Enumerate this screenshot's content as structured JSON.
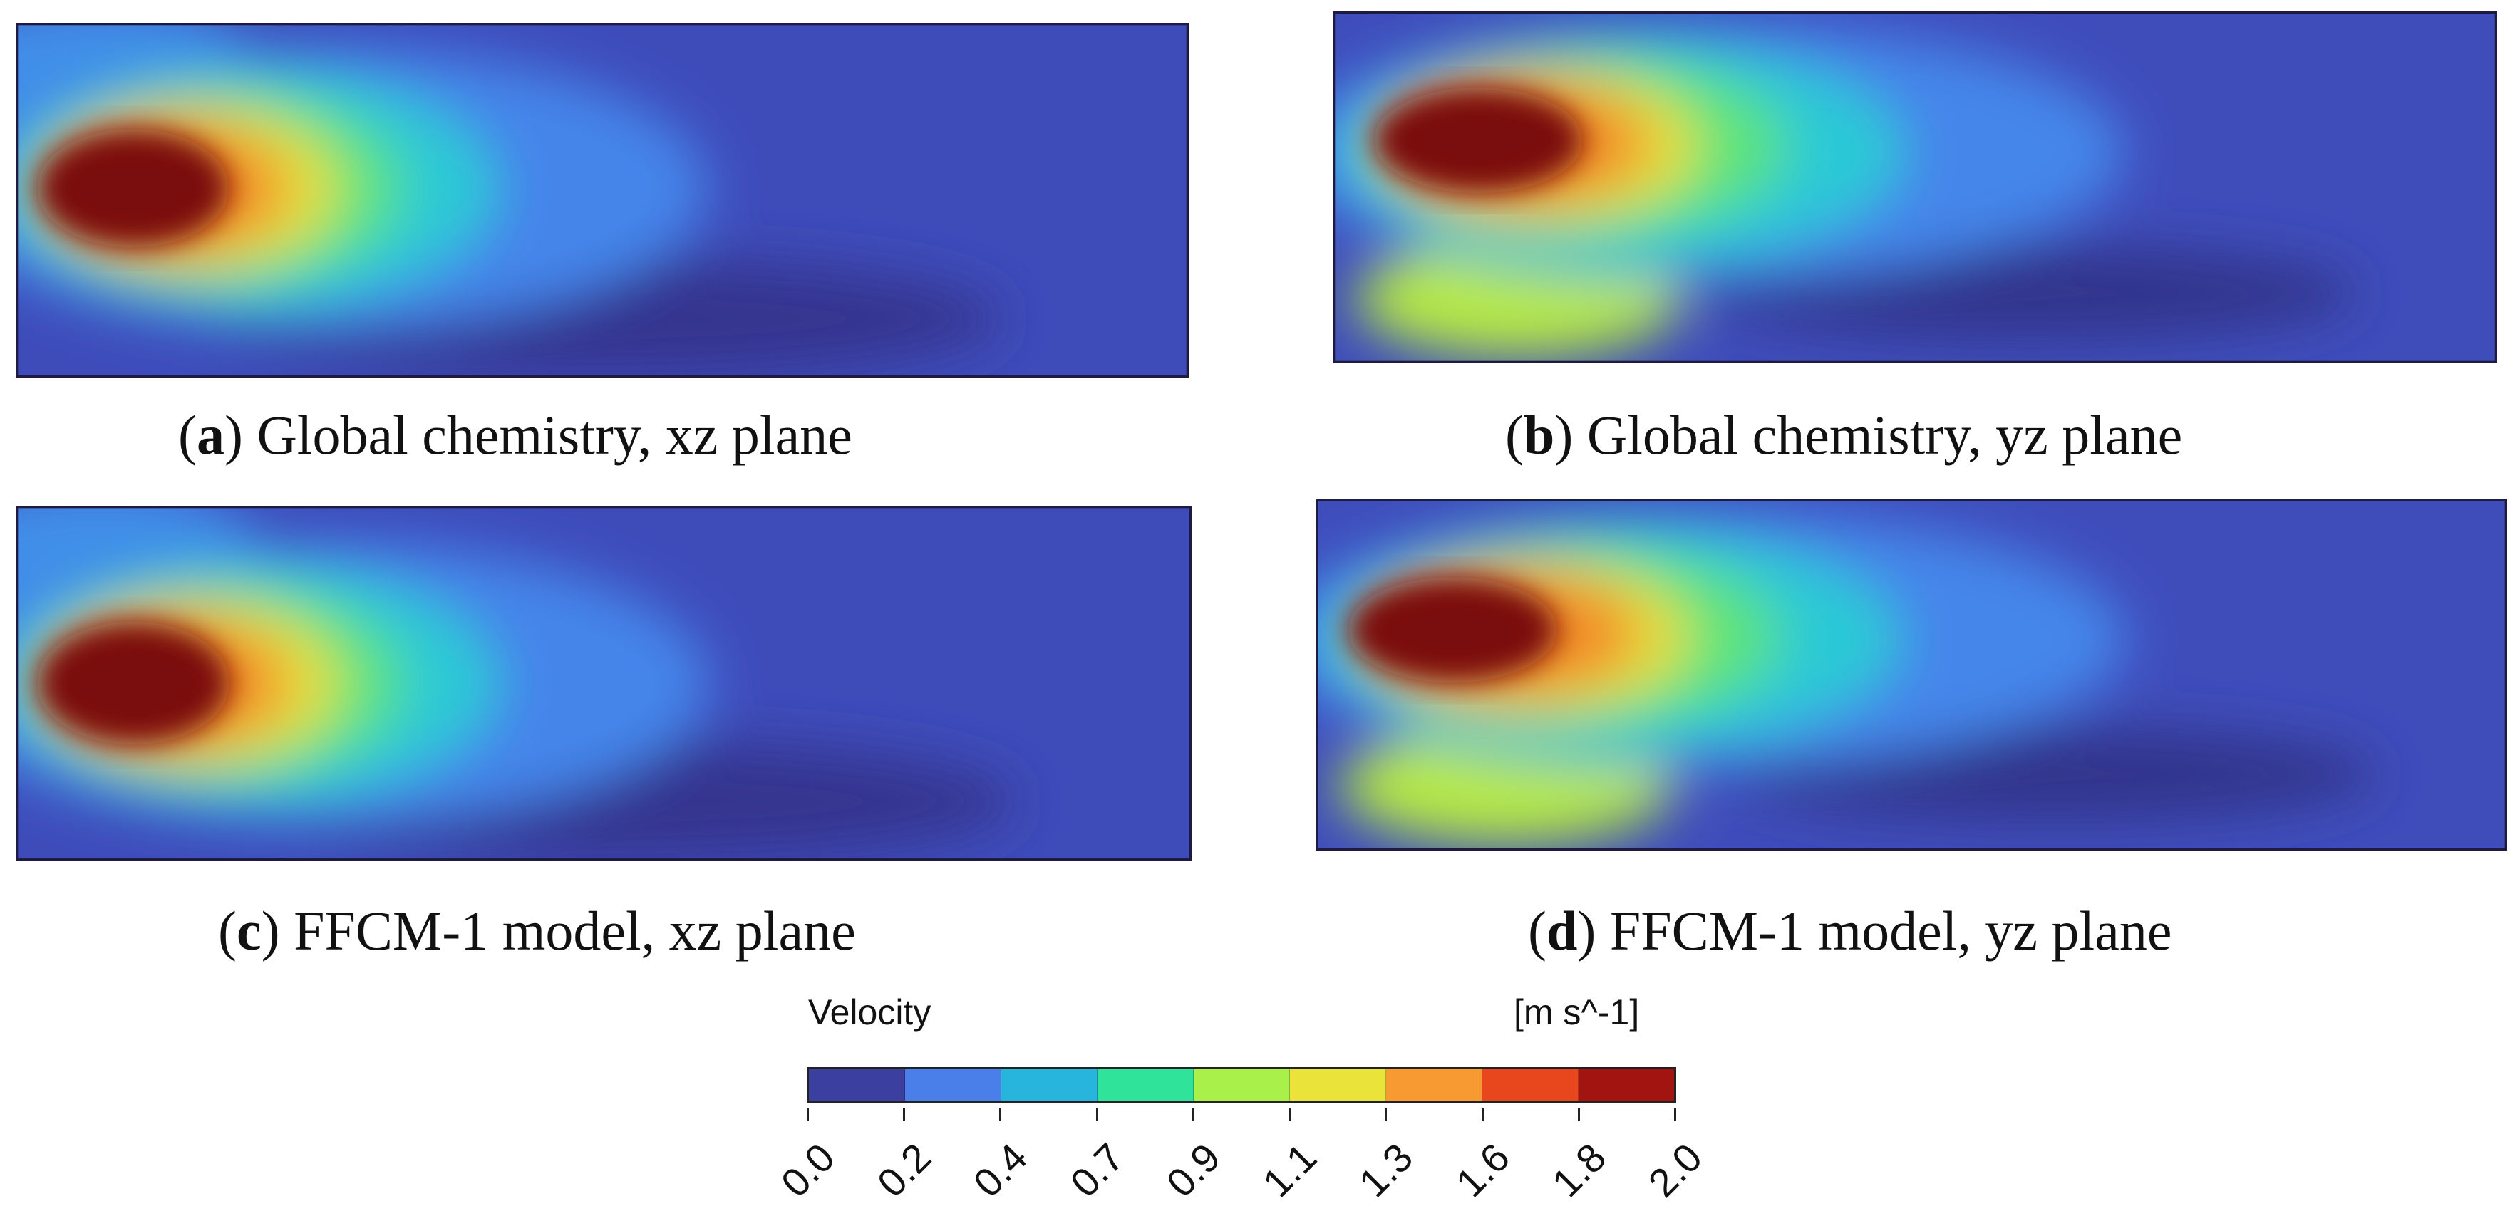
{
  "captions": {
    "a": {
      "letter": "a",
      "text": " Global chemistry, xz plane"
    },
    "b": {
      "letter": "b",
      "text": " Global chemistry, yz plane"
    },
    "c": {
      "letter": "c",
      "text": " FFCM-1 model, xz plane"
    },
    "d": {
      "letter": "d",
      "text": " FFCM-1 model, yz plane"
    }
  },
  "colorbar": {
    "title": "Velocity",
    "unit": "[m s^-1]",
    "ticks": [
      "0.0",
      "0.2",
      "0.4",
      "0.7",
      "0.9",
      "1.1",
      "1.3",
      "1.6",
      "1.8",
      "2.0"
    ],
    "colors": [
      "#3b3fa0",
      "#4a7ee8",
      "#27b5de",
      "#2fe39a",
      "#a9f04a",
      "#e9e33a",
      "#f79a32",
      "#e8461c",
      "#a21410"
    ]
  },
  "colors": {
    "background": "#3d4cb8",
    "frame": "#1e1a40"
  }
}
